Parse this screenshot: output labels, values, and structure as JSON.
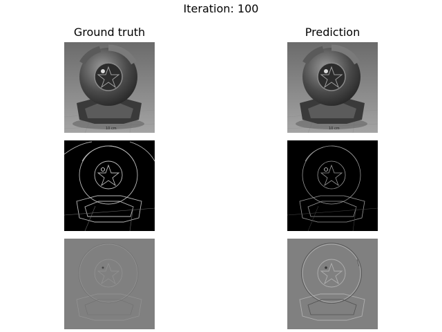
{
  "figure": {
    "title": "Iteration: 100",
    "columns": [
      "Ground truth",
      "Prediction"
    ]
  },
  "panels": [
    {
      "row": "image",
      "column": "Ground truth",
      "icon": "grayscale-material-sphere-render"
    },
    {
      "row": "image",
      "column": "Prediction",
      "icon": "grayscale-material-sphere-render"
    },
    {
      "row": "edges",
      "column": "Ground truth",
      "icon": "edge-magnitude-map"
    },
    {
      "row": "edges",
      "column": "Prediction",
      "icon": "edge-magnitude-map"
    },
    {
      "row": "laplacian",
      "column": "Ground truth",
      "icon": "high-pass-detail-map"
    },
    {
      "row": "laplacian",
      "column": "Prediction",
      "icon": "high-pass-detail-map"
    }
  ]
}
